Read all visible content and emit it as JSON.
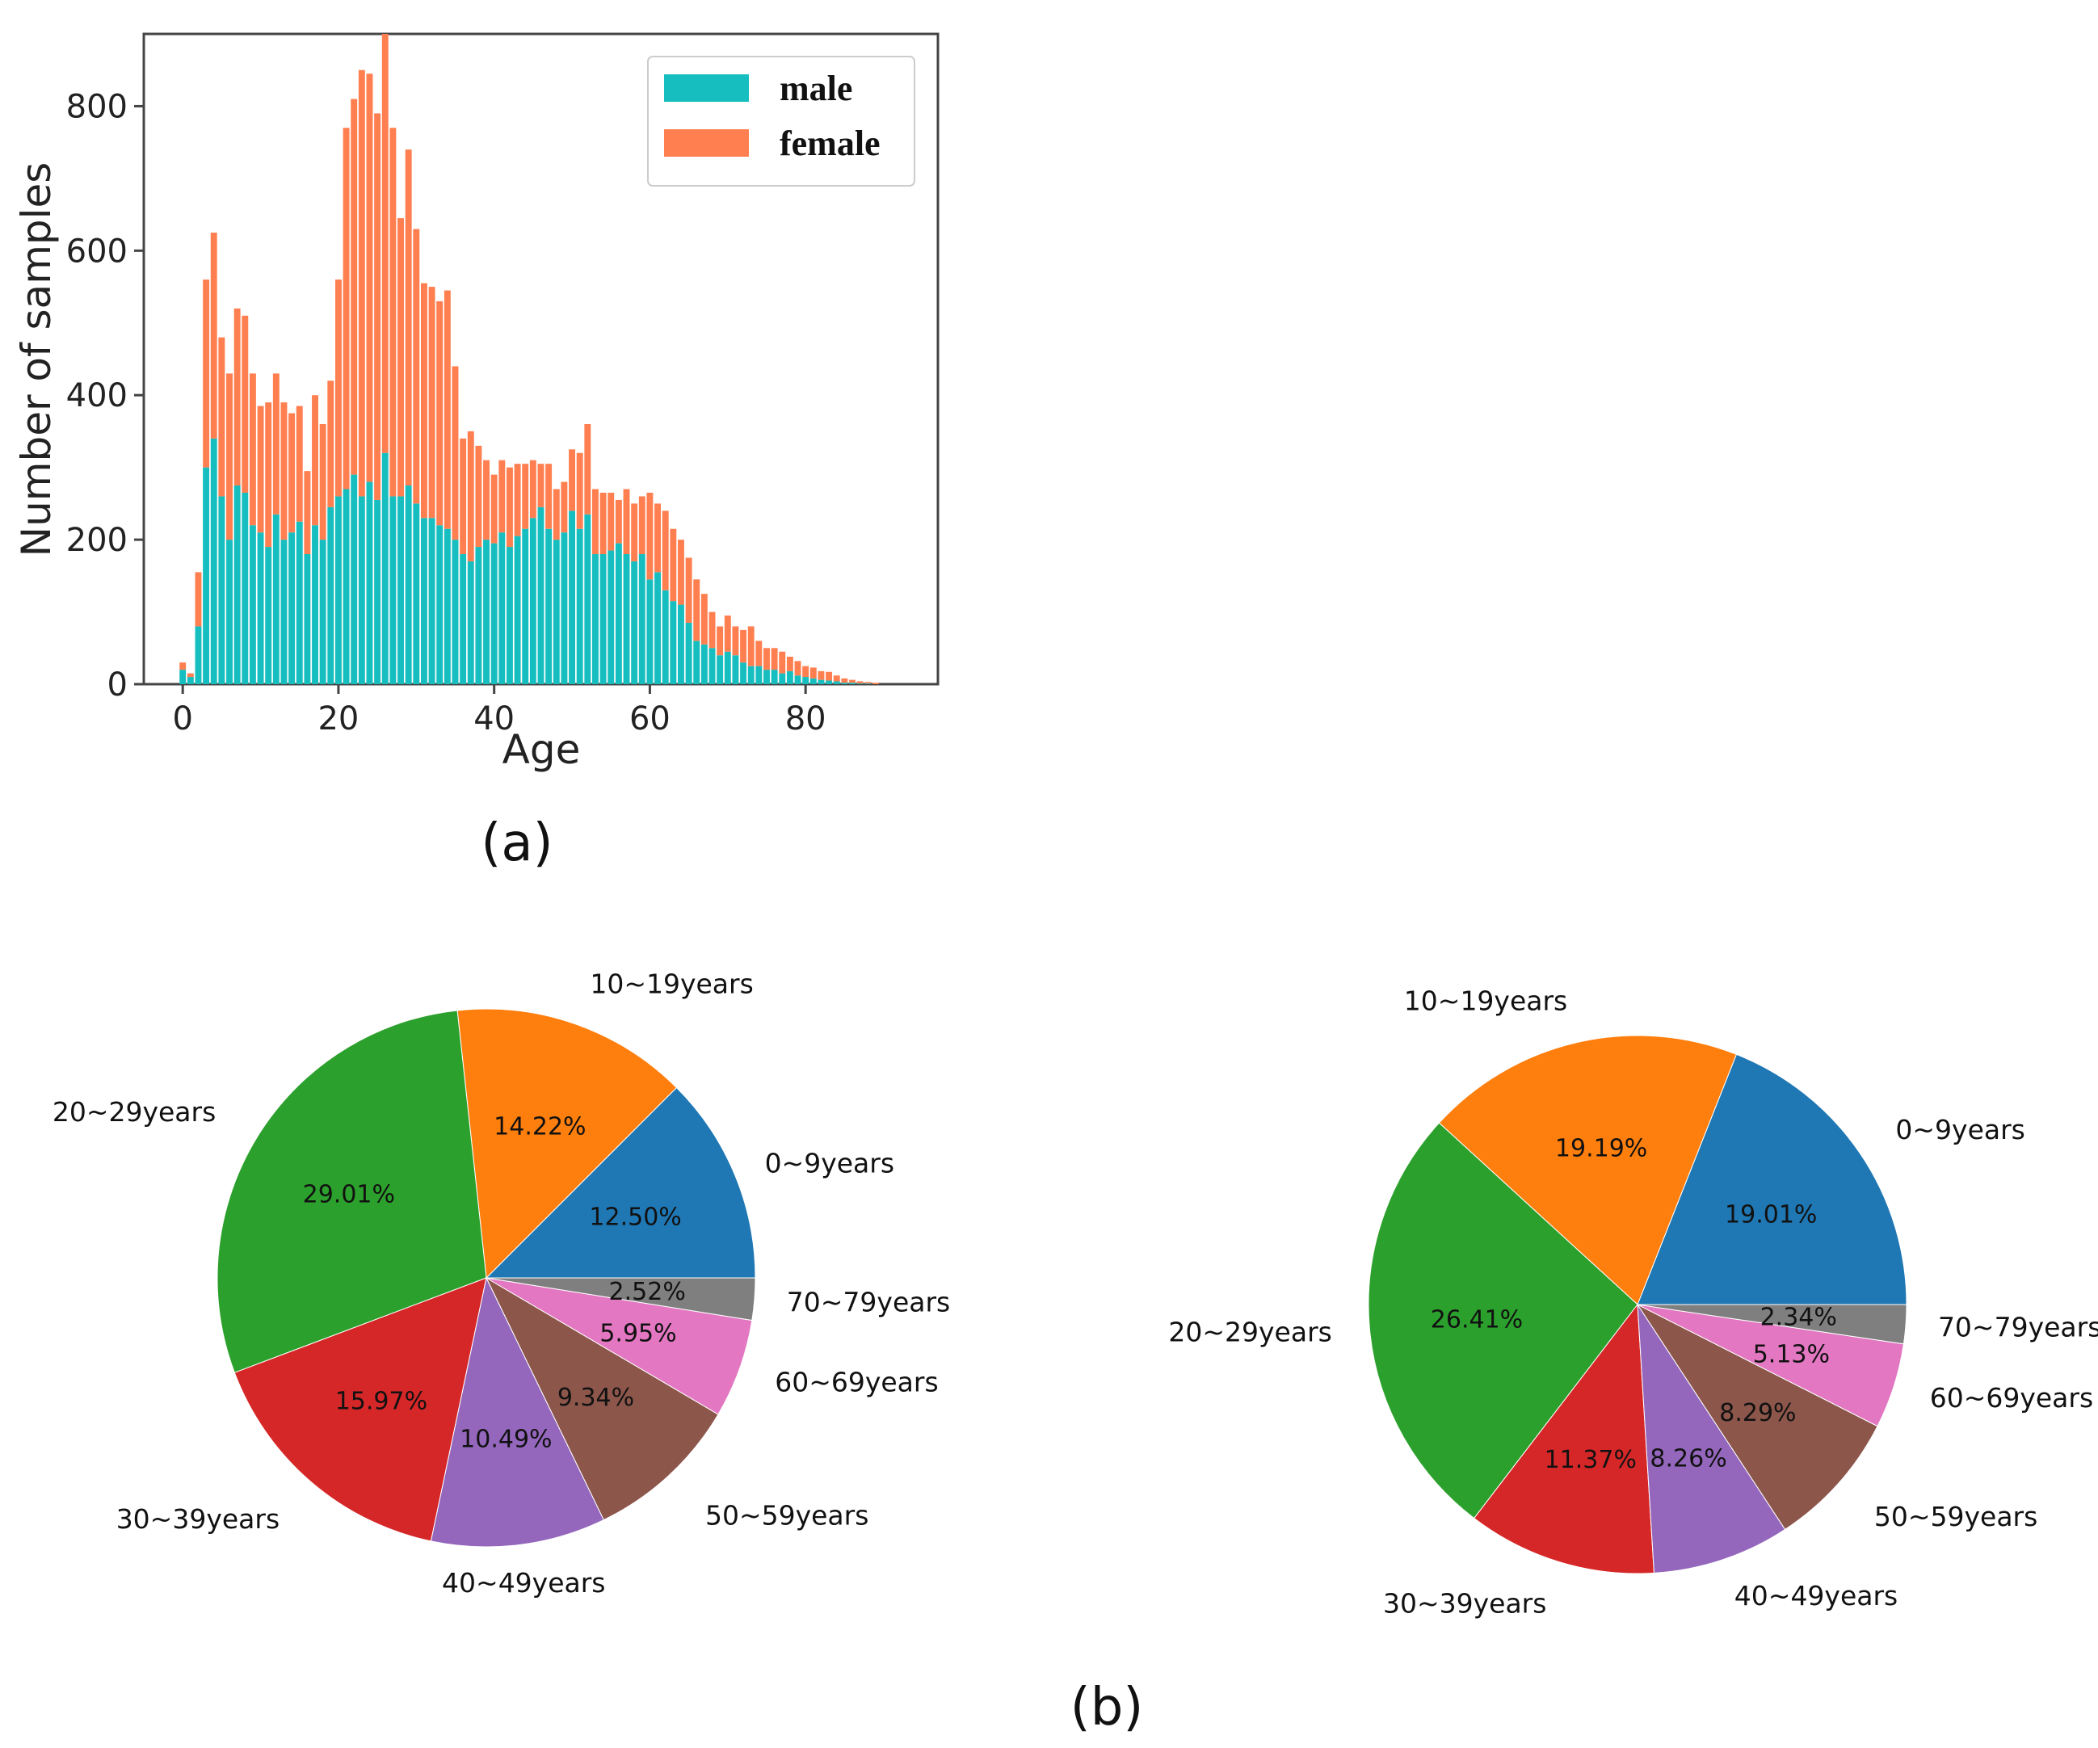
{
  "chart_data": [
    {
      "type": "bar",
      "subtype": "stacked",
      "caption": "(a)",
      "xlabel": "Age",
      "ylabel": "Number of samples",
      "xlim": [
        -5,
        97
      ],
      "ylim": [
        0,
        900
      ],
      "xticks": [
        "0",
        "20",
        "40",
        "60",
        "80"
      ],
      "yticks": [
        "0",
        "200",
        "400",
        "600",
        "800"
      ],
      "legend_position": "top-right",
      "series": [
        {
          "name": "male",
          "color": "#17BEBF",
          "values": [
            20,
            10,
            80,
            300,
            340,
            260,
            200,
            275,
            265,
            220,
            210,
            190,
            235,
            200,
            210,
            225,
            180,
            220,
            200,
            245,
            260,
            270,
            290,
            260,
            280,
            255,
            320,
            260,
            260,
            275,
            250,
            230,
            230,
            220,
            215,
            200,
            180,
            170,
            190,
            200,
            195,
            210,
            190,
            205,
            215,
            230,
            245,
            215,
            200,
            210,
            240,
            215,
            235,
            180,
            180,
            185,
            195,
            180,
            170,
            180,
            145,
            155,
            130,
            115,
            110,
            85,
            60,
            55,
            50,
            40,
            45,
            40,
            30,
            25,
            25,
            20,
            20,
            15,
            18,
            12,
            10,
            8,
            6,
            5,
            4,
            2,
            2,
            1,
            1,
            0
          ]
        },
        {
          "name": "female",
          "color": "#FF7F50",
          "values": [
            10,
            5,
            75,
            260,
            285,
            220,
            230,
            245,
            245,
            210,
            175,
            200,
            195,
            190,
            165,
            160,
            115,
            180,
            160,
            175,
            300,
            500,
            520,
            590,
            565,
            535,
            580,
            510,
            385,
            465,
            380,
            325,
            320,
            310,
            330,
            240,
            160,
            180,
            140,
            110,
            95,
            100,
            110,
            100,
            90,
            80,
            60,
            90,
            70,
            70,
            85,
            105,
            125,
            90,
            85,
            80,
            60,
            90,
            80,
            80,
            120,
            95,
            110,
            100,
            90,
            90,
            85,
            70,
            50,
            40,
            50,
            40,
            45,
            55,
            35,
            30,
            30,
            30,
            20,
            20,
            15,
            15,
            12,
            12,
            8,
            6,
            4,
            3,
            2,
            2
          ]
        }
      ]
    },
    {
      "type": "pie",
      "caption": "(b)",
      "categories": [
        "0~9years",
        "10~19years",
        "20~29years",
        "30~39years",
        "40~49years",
        "50~59years",
        "60~69years",
        "70~79years"
      ],
      "values": [
        12.5,
        14.22,
        29.01,
        15.97,
        10.49,
        9.34,
        5.95,
        2.52
      ],
      "labels_pct": [
        "12.50%",
        "14.22%",
        "29.01%",
        "15.97%",
        "10.49%",
        "9.34%",
        "5.95%",
        "2.52%"
      ],
      "colors": [
        "#1f77b4",
        "#ff7f0e",
        "#2ca02c",
        "#d62728",
        "#9467bd",
        "#8c564b",
        "#e377c2",
        "#7f7f7f"
      ]
    },
    {
      "type": "pie",
      "caption": "(b)",
      "categories": [
        "0~9years",
        "10~19years",
        "20~29years",
        "30~39years",
        "40~49years",
        "50~59years",
        "60~69years",
        "70~79years"
      ],
      "values": [
        19.01,
        19.19,
        26.41,
        11.37,
        8.26,
        8.29,
        5.13,
        2.34
      ],
      "labels_pct": [
        "19.01%",
        "19.19%",
        "26.41%",
        "11.37%",
        "8.26%",
        "8.29%",
        "5.13%",
        "2.34%"
      ],
      "colors": [
        "#1f77b4",
        "#ff7f0e",
        "#2ca02c",
        "#d62728",
        "#9467bd",
        "#8c564b",
        "#e377c2",
        "#7f7f7f"
      ]
    }
  ]
}
